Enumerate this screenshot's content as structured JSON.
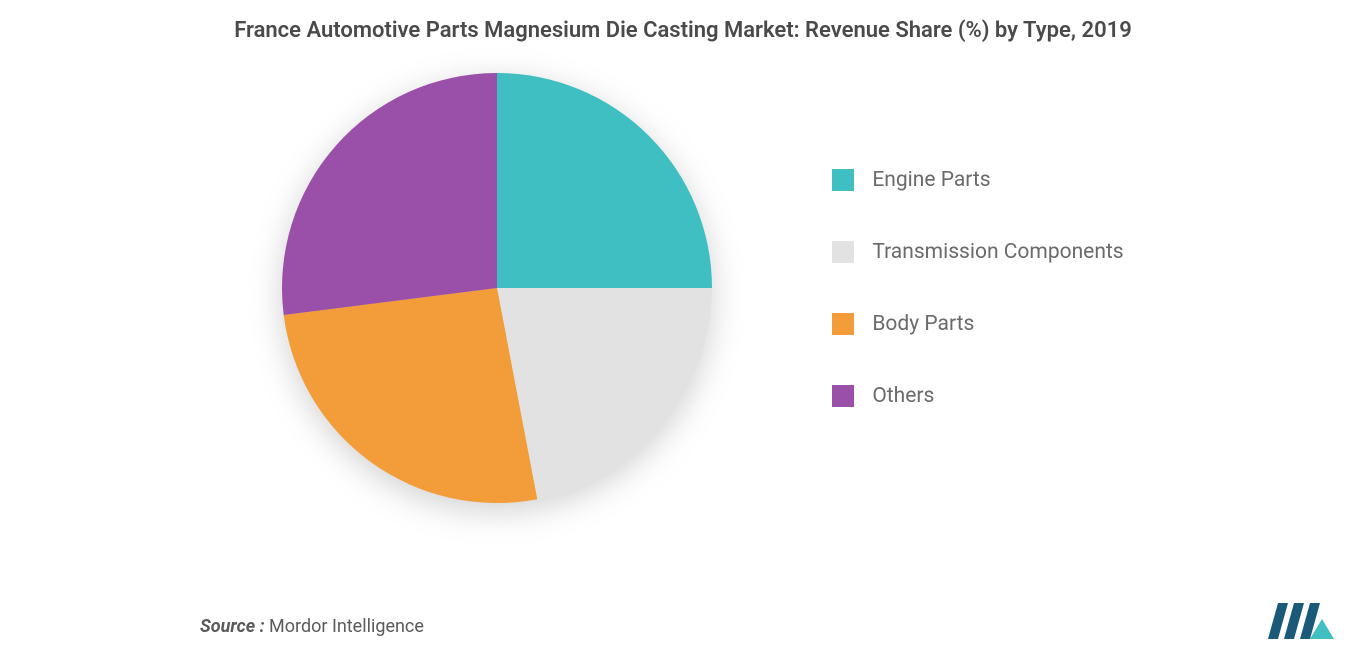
{
  "title": "France Automotive Parts Magnesium Die Casting Market: Revenue Share (%) by Type, 2019",
  "chart": {
    "type": "pie",
    "background_color": "#ffffff",
    "radius": 215,
    "shadow": true,
    "slices": [
      {
        "label": "Engine Parts",
        "value": 25,
        "color": "#3fbfc1"
      },
      {
        "label": "Transmission Components",
        "value": 22,
        "color": "#e2e2e2"
      },
      {
        "label": "Body Parts",
        "value": 26,
        "color": "#f29c3a"
      },
      {
        "label": "Others",
        "value": 27,
        "color": "#9a4fa8"
      }
    ],
    "start_angle_deg": -90
  },
  "legend": {
    "position": "right",
    "items": [
      {
        "label": "Engine Parts",
        "color": "#3fbfc1"
      },
      {
        "label": "Transmission Components",
        "color": "#e2e2e2"
      },
      {
        "label": "Body Parts",
        "color": "#f29c3a"
      },
      {
        "label": "Others",
        "color": "#9a4fa8"
      }
    ],
    "swatch_size": 22,
    "label_fontsize": 21,
    "label_color": "#6a6a6a"
  },
  "source": {
    "label": "Source :",
    "value": " Mordor Intelligence"
  },
  "logo": {
    "bars_color": "#1a5a78",
    "accent_color": "#3fbfc1"
  }
}
